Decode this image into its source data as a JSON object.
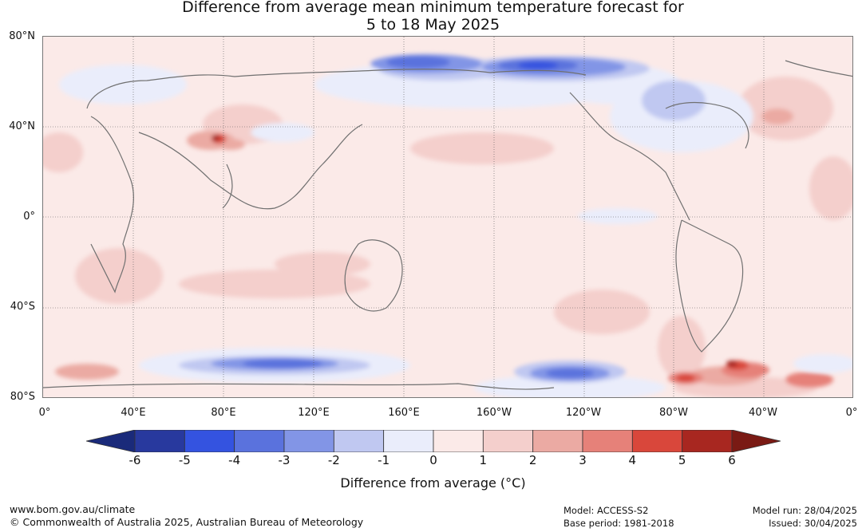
{
  "title_line1": "Difference from average mean minimum temperature forecast for",
  "title_line2": "5 to 18 May 2025",
  "map": {
    "lat_labels": [
      "80°N",
      "40°N",
      "0°",
      "40°S",
      "80°S"
    ],
    "lon_labels": [
      "0°",
      "40°E",
      "80°E",
      "120°E",
      "160°E",
      "160°W",
      "120°W",
      "80°W",
      "40°W",
      "0°"
    ],
    "background_color": "#fbeae8"
  },
  "colorbar": {
    "ticks": [
      "-6",
      "-5",
      "-4",
      "-3",
      "-2",
      "-1",
      "0",
      "1",
      "2",
      "3",
      "4",
      "5",
      "6"
    ],
    "colors": [
      "#28399e",
      "#3453e0",
      "#5a72dd",
      "#8295e6",
      "#c0c8f1",
      "#eaedfb",
      "#fbeae8",
      "#f4cfcc",
      "#ebaaa3",
      "#e68179",
      "#d9473b",
      "#a82720"
    ],
    "under_color": "#1a2a7a",
    "over_color": "#7a1a14",
    "label": "Difference from average (°C)"
  },
  "footer": {
    "site": "www.bom.gov.au/climate",
    "copyright": "© Commonwealth of Australia 2025, Australian Bureau of Meteorology",
    "model": "Model: ACCESS-S2",
    "base_period": "Base period: 1981-2018",
    "model_run": "Model run: 28/04/2025",
    "issued": "Issued: 30/04/2025"
  }
}
